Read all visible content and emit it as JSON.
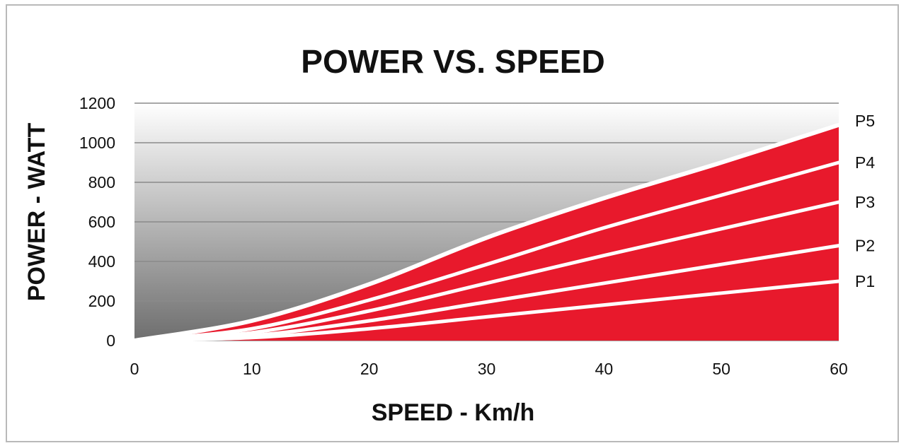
{
  "chart_data": {
    "type": "area",
    "title": "POWER VS. SPEED",
    "xlabel": "SPEED - Km/h",
    "ylabel": "POWER - WATT",
    "x_ticks": [
      "0",
      "10",
      "20",
      "30",
      "40",
      "50",
      "60"
    ],
    "y_ticks": [
      "0",
      "200",
      "400",
      "600",
      "800",
      "1000",
      "1200"
    ],
    "xlim": [
      0,
      60
    ],
    "ylim": [
      0,
      1200
    ],
    "grid": true,
    "legend": "right-end-labels",
    "x": [
      0,
      10,
      20,
      30,
      40,
      50,
      60
    ],
    "series": [
      {
        "name": "P1",
        "values": [
          0,
          15,
          60,
          120,
          180,
          240,
          300
        ]
      },
      {
        "name": "P2",
        "values": [
          0,
          25,
          100,
          195,
          290,
          385,
          480
        ]
      },
      {
        "name": "P3",
        "values": [
          0,
          40,
          150,
          290,
          430,
          565,
          700
        ]
      },
      {
        "name": "P4",
        "values": [
          0,
          60,
          205,
          385,
          570,
          735,
          900
        ]
      },
      {
        "name": "P5",
        "values": [
          0,
          100,
          285,
          520,
          720,
          900,
          1090
        ]
      }
    ],
    "colors": {
      "fill": "#e8192c",
      "separator": "#ffffff",
      "grid": "#8a8a8a",
      "bg_top": "#ffffff",
      "bg_bottom": "#6e6e6e"
    }
  }
}
